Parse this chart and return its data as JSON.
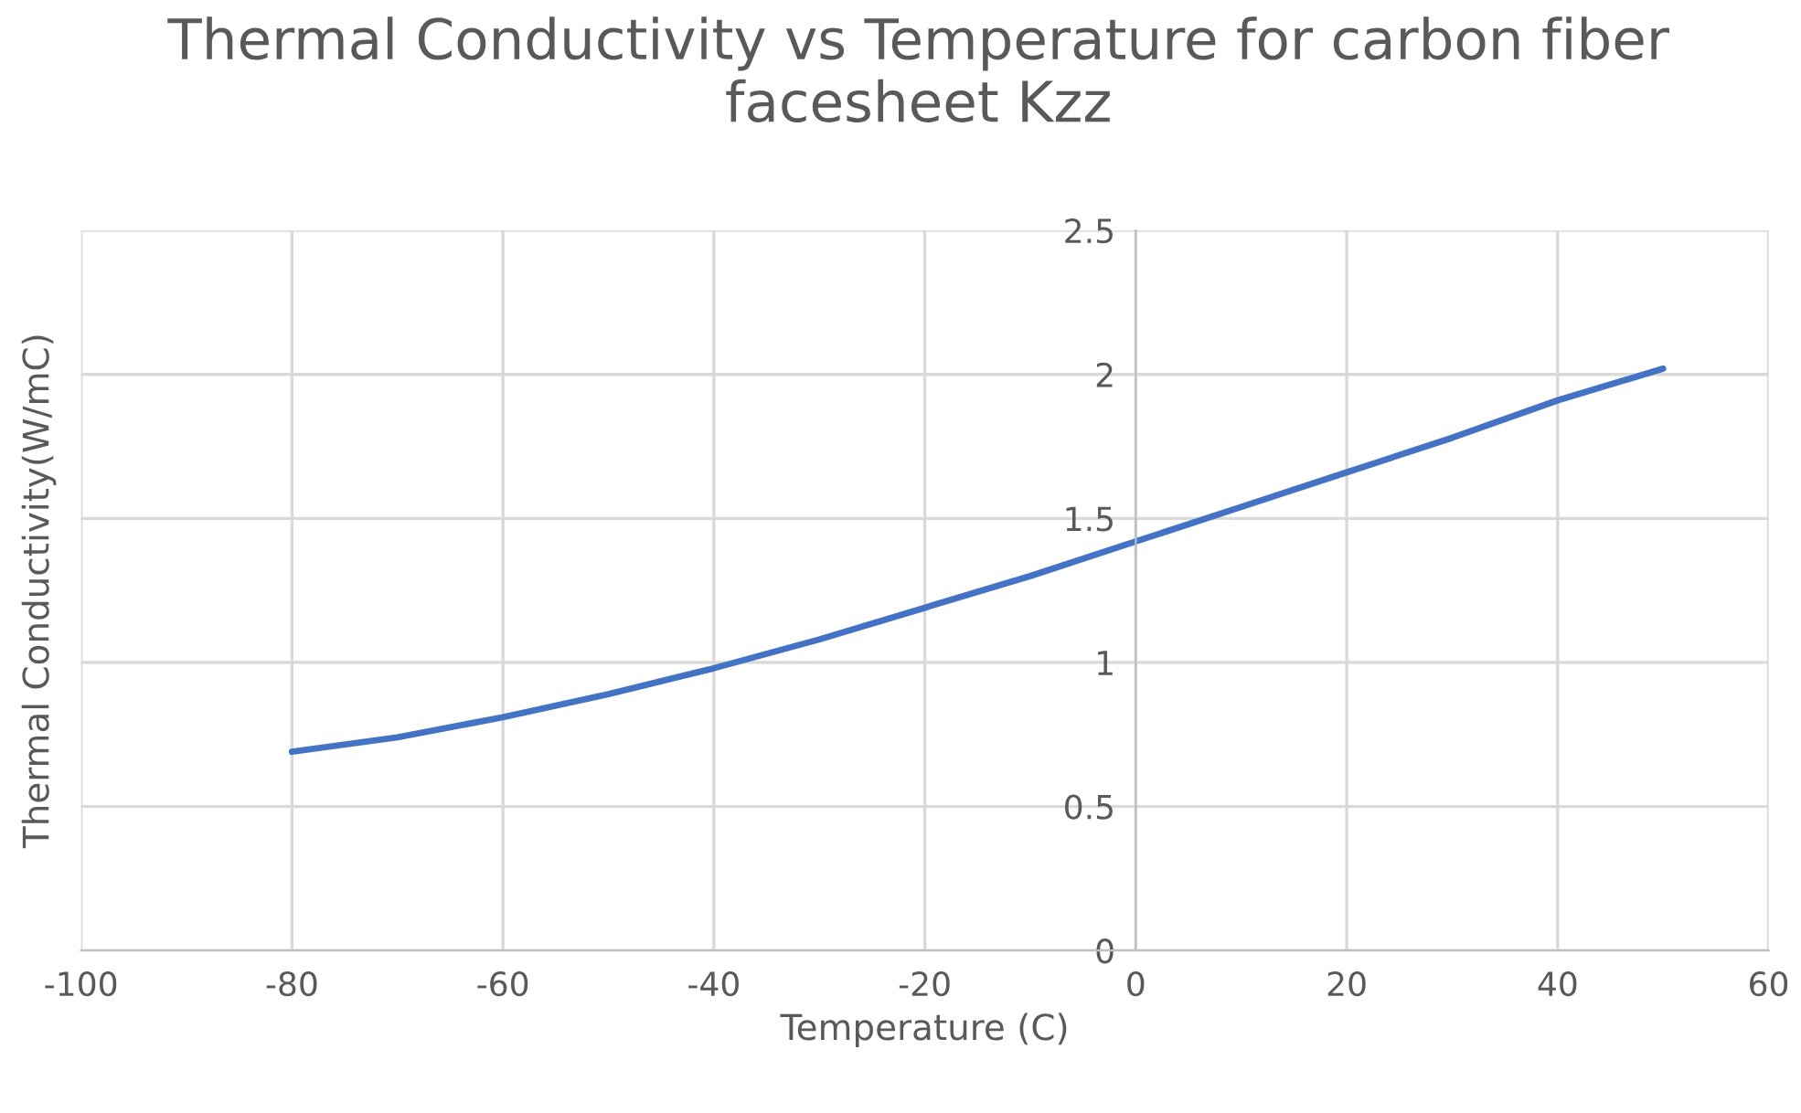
{
  "chart_data": {
    "type": "line",
    "title": "Thermal Conductivity vs Temperature for carbon fiber facesheet Kzz",
    "xlabel": "Temperature (C)",
    "ylabel": "Thermal Conductivity(W/mC)",
    "x": [
      -80,
      -70,
      -60,
      -50,
      -40,
      -30,
      -20,
      -10,
      0,
      10,
      20,
      30,
      40,
      50
    ],
    "series": [
      {
        "color": "#4472c4",
        "values": [
          0.69,
          0.74,
          0.81,
          0.89,
          0.98,
          1.08,
          1.19,
          1.3,
          1.42,
          1.54,
          1.66,
          1.78,
          1.91,
          2.02
        ]
      }
    ],
    "xlim": [
      -100,
      60
    ],
    "xticks": [
      -100,
      -80,
      -60,
      -40,
      -20,
      0,
      20,
      40,
      60
    ],
    "ylim": [
      0,
      2.5
    ],
    "yticks": [
      0,
      0.5,
      1,
      1.5,
      2,
      2.5
    ],
    "grid": true,
    "legend": false,
    "marker": "none",
    "line_style": "solid"
  }
}
